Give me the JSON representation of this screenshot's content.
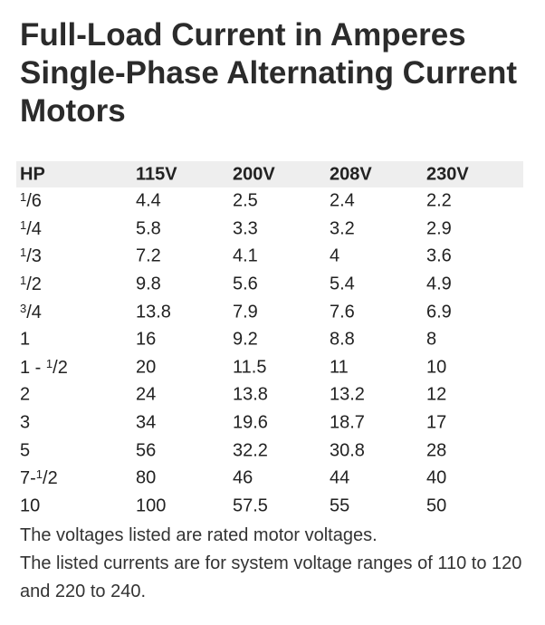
{
  "title": "Full-Load Current in Amperes Single-Phase Alternating Current Motors",
  "table": {
    "header": [
      "HP",
      "115V",
      "200V",
      "208V",
      "230V"
    ],
    "rows": [
      [
        [
          {
            "text": "1",
            "sup": true
          },
          {
            "text": "/6"
          }
        ],
        "4.4",
        "2.5",
        "2.4",
        "2.2"
      ],
      [
        [
          {
            "text": "1",
            "sup": true
          },
          {
            "text": "/4"
          }
        ],
        "5.8",
        "3.3",
        "3.2",
        "2.9"
      ],
      [
        [
          {
            "text": "1",
            "sup": true
          },
          {
            "text": "/3"
          }
        ],
        "7.2",
        "4.1",
        "4",
        "3.6"
      ],
      [
        [
          {
            "text": "1",
            "sup": true
          },
          {
            "text": "/2"
          }
        ],
        "9.8",
        "5.6",
        "5.4",
        "4.9"
      ],
      [
        [
          {
            "text": "3",
            "sup": true
          },
          {
            "text": "/4"
          }
        ],
        "13.8",
        "7.9",
        "7.6",
        "6.9"
      ],
      [
        "1",
        "16",
        "9.2",
        "8.8",
        "8"
      ],
      [
        [
          {
            "text": "1 - "
          },
          {
            "text": "1",
            "sup": true
          },
          {
            "text": "/2"
          }
        ],
        "20",
        "11.5",
        "11",
        "10"
      ],
      [
        "2",
        "24",
        "13.8",
        "13.2",
        "12"
      ],
      [
        "3",
        "34",
        "19.6",
        "18.7",
        "17"
      ],
      [
        "5",
        "56",
        "32.2",
        "30.8",
        "28"
      ],
      [
        [
          {
            "text": "7-"
          },
          {
            "text": "1",
            "sup": true
          },
          {
            "text": "/2"
          }
        ],
        "80",
        "46",
        "44",
        "40"
      ],
      [
        "10",
        "100",
        "57.5",
        "55",
        "50"
      ]
    ]
  },
  "notes": [
    "The voltages listed are rated motor voltages.",
    "The listed currents are for system voltage ranges of 110 to 120 and 220 to 240."
  ]
}
